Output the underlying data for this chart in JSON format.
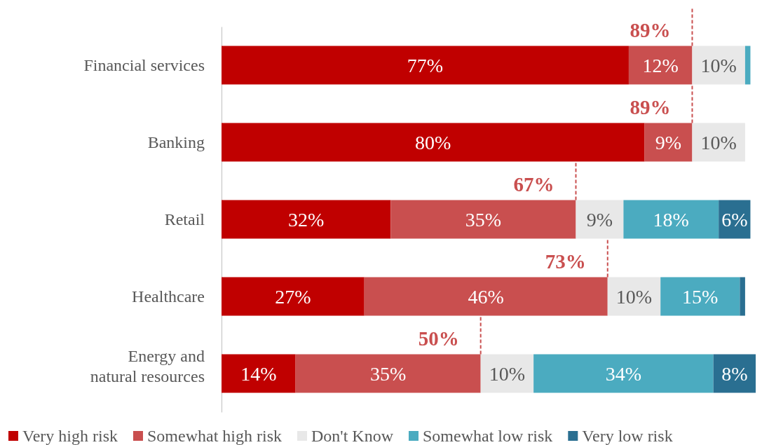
{
  "chart_data": {
    "type": "bar",
    "orientation": "horizontal",
    "stacked": true,
    "categories": [
      "Financial services",
      "Banking",
      "Retail",
      "Healthcare",
      "Energy and natural resources"
    ],
    "xlim": [
      0,
      101
    ],
    "tick_labels": "y",
    "legend": "bottom",
    "series": [
      {
        "name": "Very high risk",
        "color": "#c00000",
        "values": [
          77,
          80,
          32,
          27,
          14
        ],
        "value_labels": [
          "77%",
          "80%",
          "32%",
          "27%",
          "14%"
        ]
      },
      {
        "name": "Somewhat high risk",
        "color": "#c94f4f",
        "values": [
          12,
          9,
          35,
          46,
          35
        ],
        "value_labels": [
          "12%",
          "9%",
          "35%",
          "46%",
          "35%"
        ]
      },
      {
        "name": "Don't Know",
        "color": "#e8e8e8",
        "values": [
          10,
          10,
          9,
          10,
          10
        ],
        "value_labels": [
          "10%",
          "10%",
          "9%",
          "10%",
          "10%"
        ]
      },
      {
        "name": "Somewhat low risk",
        "color": "#4babc0",
        "values": [
          1,
          null,
          18,
          15,
          34
        ],
        "value_labels": [
          null,
          null,
          "18%",
          "15%",
          "34%"
        ]
      },
      {
        "name": "Very low risk",
        "color": "#2a6f91",
        "values": [
          null,
          null,
          6,
          1,
          8
        ],
        "value_labels": [
          null,
          null,
          "6%",
          null,
          "8%"
        ]
      }
    ],
    "annotations": [
      "89%",
      "89%",
      "67%",
      "73%",
      "50%"
    ]
  }
}
